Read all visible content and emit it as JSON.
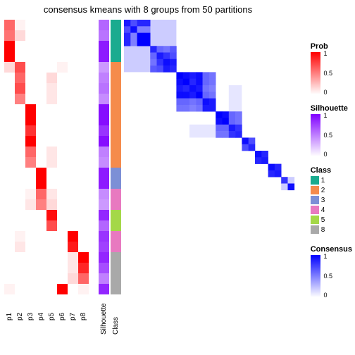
{
  "title": "consensus kmeans with 8 groups from 50 partitions",
  "layout": {
    "n_rows": 26,
    "cell_size": 15,
    "prob_cols": 8,
    "gap_after_prob": 14,
    "ann_col_w": 15,
    "gap_after_sil": 2,
    "gap_after_class": 4
  },
  "column_labels": [
    "p1",
    "p2",
    "p3",
    "p4",
    "p5",
    "p6",
    "p7",
    "p8",
    "Silhouette",
    "Class"
  ],
  "colors": {
    "bg": "#ffffff",
    "prob_low": "#ffffff",
    "prob_high": "#ff0000",
    "sil_low": "#ffffff",
    "sil_high": "#8000ff",
    "cons_low": "#ffffff",
    "cons_high": "#0000ff",
    "class": {
      "1": "#1aab8f",
      "2": "#f58b4c",
      "3": "#7c8fd6",
      "4": "#e879c0",
      "5": "#a4d848",
      "8": "#a9a9a9"
    }
  },
  "group_sizes": [
    4,
    4,
    6,
    4,
    2,
    2,
    2,
    2
  ],
  "prob_matrix": [
    [
      0.6,
      0.05,
      0,
      0,
      0,
      0,
      0,
      0
    ],
    [
      0.55,
      0.15,
      0,
      0,
      0,
      0,
      0,
      0
    ],
    [
      1.0,
      0,
      0,
      0,
      0,
      0,
      0,
      0
    ],
    [
      1.0,
      0,
      0,
      0,
      0,
      0,
      0,
      0
    ],
    [
      0.15,
      0.7,
      0,
      0,
      0,
      0.05,
      0,
      0
    ],
    [
      0,
      0.6,
      0,
      0,
      0.15,
      0,
      0,
      0
    ],
    [
      0,
      0.7,
      0,
      0,
      0.1,
      0,
      0,
      0
    ],
    [
      0,
      0.5,
      0,
      0,
      0.1,
      0,
      0,
      0
    ],
    [
      0,
      0,
      1.0,
      0,
      0,
      0,
      0,
      0
    ],
    [
      0,
      0,
      1.0,
      0,
      0,
      0,
      0,
      0
    ],
    [
      0,
      0,
      0.8,
      0,
      0,
      0,
      0,
      0
    ],
    [
      0,
      0,
      1.0,
      0,
      0,
      0,
      0,
      0
    ],
    [
      0,
      0,
      0.6,
      0,
      0.1,
      0,
      0,
      0
    ],
    [
      0,
      0,
      0.5,
      0,
      0.1,
      0,
      0,
      0
    ],
    [
      0,
      0,
      0,
      1.0,
      0,
      0,
      0,
      0
    ],
    [
      0,
      0,
      0,
      1.0,
      0,
      0,
      0,
      0
    ],
    [
      0,
      0,
      0.05,
      0.6,
      0.1,
      0,
      0,
      0
    ],
    [
      0,
      0,
      0.1,
      0.5,
      0.15,
      0,
      0,
      0
    ],
    [
      0,
      0,
      0,
      0,
      0.95,
      0,
      0,
      0
    ],
    [
      0,
      0,
      0,
      0,
      0.7,
      0,
      0,
      0
    ],
    [
      0,
      0.05,
      0,
      0,
      0,
      0,
      1.0,
      0
    ],
    [
      0,
      0.1,
      0,
      0,
      0,
      0,
      0.9,
      0
    ],
    [
      0,
      0,
      0,
      0,
      0,
      0,
      0.1,
      1.0
    ],
    [
      0,
      0,
      0,
      0,
      0,
      0,
      0.1,
      0.85
    ],
    [
      0,
      0,
      0,
      0,
      0,
      0,
      0.15,
      0.6
    ],
    [
      0.05,
      0,
      0,
      0,
      0,
      1.0,
      0,
      0.05
    ]
  ],
  "silhouette": [
    0.6,
    0.55,
    0.9,
    0.9,
    0.4,
    0.5,
    0.55,
    0.45,
    0.95,
    0.95,
    0.8,
    0.95,
    0.5,
    0.45,
    0.9,
    0.9,
    0.45,
    0.4,
    0.85,
    0.6,
    0.8,
    0.75,
    0.85,
    0.7,
    0.5,
    0.85
  ],
  "class_vec": [
    1,
    1,
    1,
    1,
    2,
    2,
    2,
    2,
    2,
    2,
    2,
    2,
    2,
    2,
    3,
    3,
    4,
    4,
    5,
    5,
    4,
    4,
    8,
    8,
    8,
    8
  ],
  "consensus_blocks": [
    {
      "start": 0,
      "end": 4,
      "pattern": [
        [
          0.9,
          0.7,
          0.85,
          0.85
        ],
        [
          0.7,
          0.95,
          0.5,
          0.5
        ],
        [
          0.85,
          0.5,
          1,
          1
        ],
        [
          0.85,
          0.5,
          1,
          1
        ]
      ]
    },
    {
      "start": 4,
      "end": 8,
      "pattern": [
        [
          0.85,
          0.6,
          0.55,
          0.65
        ],
        [
          0.6,
          0.9,
          0.8,
          0.7
        ],
        [
          0.55,
          0.8,
          0.95,
          0.9
        ],
        [
          0.65,
          0.7,
          0.9,
          0.85
        ]
      ]
    },
    {
      "start": 8,
      "end": 14,
      "pattern": [
        [
          1,
          0.95,
          0.9,
          0.95,
          0.6,
          0.55
        ],
        [
          0.95,
          1,
          0.85,
          0.95,
          0.6,
          0.55
        ],
        [
          0.9,
          0.85,
          0.95,
          0.9,
          0.55,
          0.5
        ],
        [
          0.95,
          0.95,
          0.9,
          1,
          0.6,
          0.55
        ],
        [
          0.6,
          0.6,
          0.55,
          0.6,
          0.95,
          0.9
        ],
        [
          0.55,
          0.55,
          0.5,
          0.55,
          0.9,
          0.9
        ]
      ]
    },
    {
      "start": 14,
      "end": 18,
      "pattern": [
        [
          1,
          0.95,
          0.6,
          0.55
        ],
        [
          0.95,
          1,
          0.6,
          0.55
        ],
        [
          0.6,
          0.6,
          0.9,
          0.8
        ],
        [
          0.55,
          0.55,
          0.8,
          0.85
        ]
      ]
    },
    {
      "start": 18,
      "end": 20,
      "pattern": [
        [
          0.95,
          0.7
        ],
        [
          0.7,
          0.85
        ]
      ]
    },
    {
      "start": 20,
      "end": 22,
      "pattern": [
        [
          0.95,
          0.85
        ],
        [
          0.85,
          0.9
        ]
      ]
    },
    {
      "start": 22,
      "end": 24,
      "pattern": [
        [
          0.95,
          0.85
        ],
        [
          0.85,
          0.9
        ]
      ]
    },
    {
      "start": 24,
      "end": 26,
      "pattern": [
        [
          0.8,
          0.2
        ],
        [
          0.2,
          0.95
        ]
      ]
    }
  ],
  "off_diag": [
    {
      "r": 0,
      "c": 4,
      "rows": 4,
      "cols": 4,
      "val": 0.2
    },
    {
      "r": 10,
      "c": 16,
      "rows": 4,
      "cols": 2,
      "val": 0.1
    }
  ],
  "legends": {
    "prob": {
      "title": "Prob",
      "ticks": [
        "1",
        "0.5",
        "0"
      ]
    },
    "sil": {
      "title": "Silhouette",
      "ticks": [
        "1",
        "0.5",
        "0"
      ]
    },
    "class": {
      "title": "Class",
      "items": [
        "1",
        "2",
        "3",
        "4",
        "5",
        "8"
      ]
    },
    "cons": {
      "title": "Consensus",
      "ticks": [
        "1",
        "0.5",
        "0"
      ]
    }
  }
}
